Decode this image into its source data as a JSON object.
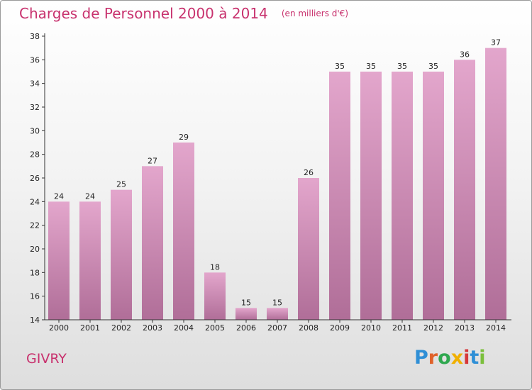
{
  "title": "Charges de Personnel 2000 à 2014",
  "subtitle": "(en milliers d'€)",
  "place": "GIVRY",
  "logo": {
    "text": "Proxiti",
    "letter_colors": [
      "#2f8fd6",
      "#e0622a",
      "#2fa84f",
      "#f0b000",
      "#d6383a",
      "#2f8fd6",
      "#7bbf3c"
    ]
  },
  "chart_data": {
    "type": "bar",
    "categories": [
      "2000",
      "2001",
      "2002",
      "2003",
      "2004",
      "2005",
      "2006",
      "2007",
      "2008",
      "2009",
      "2010",
      "2011",
      "2012",
      "2013",
      "2014"
    ],
    "values": [
      24,
      24,
      25,
      27,
      29,
      18,
      15,
      15,
      26,
      35,
      35,
      35,
      35,
      36,
      37
    ],
    "data_labels": [
      "24",
      "24",
      "25",
      "27",
      "29",
      "18",
      "15",
      "15",
      "26",
      "35",
      "35",
      "35",
      "35",
      "36",
      "37"
    ],
    "ylim": [
      14,
      38
    ],
    "yticks": [
      "14",
      "16",
      "18",
      "20",
      "22",
      "24",
      "26",
      "28",
      "30",
      "32",
      "34",
      "36",
      "38"
    ],
    "grid": false,
    "colors": {
      "bar_top": "#e3a6cc",
      "bar_bottom": "#b06e98",
      "axis": "#333333",
      "text": "#222222"
    }
  }
}
